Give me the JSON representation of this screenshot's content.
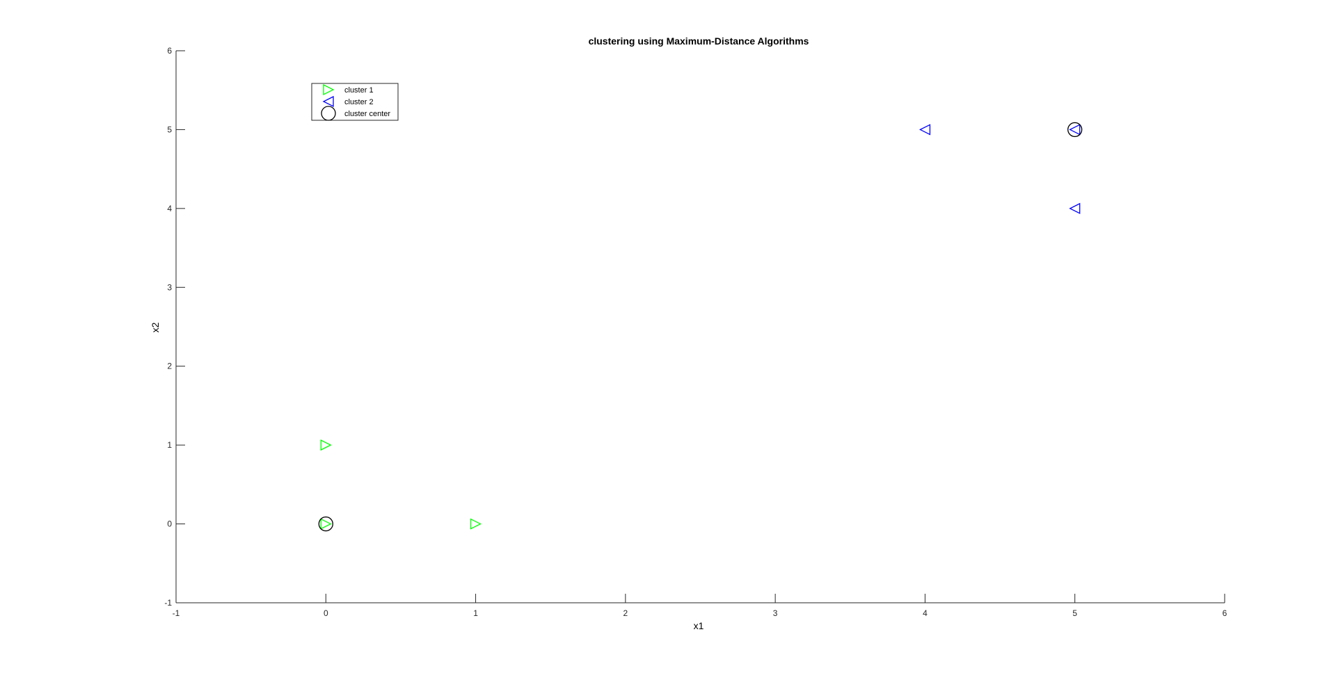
{
  "chart_data": {
    "type": "scatter",
    "title": "clustering using Maximum-Distance Algorithms",
    "xlabel": "x1",
    "ylabel": "x2",
    "xlim": [
      -1,
      6
    ],
    "ylim": [
      -1,
      6
    ],
    "xticks": [
      -1,
      0,
      1,
      2,
      3,
      4,
      5,
      6
    ],
    "yticks": [
      -1,
      0,
      1,
      2,
      3,
      4,
      5,
      6
    ],
    "grid": false,
    "legend_position": "top-left",
    "series": [
      {
        "name": "cluster 1",
        "marker": "triangle-right",
        "color": "#00ff00",
        "points": [
          [
            0,
            0
          ],
          [
            0,
            1
          ],
          [
            1,
            0
          ]
        ]
      },
      {
        "name": "cluster 2",
        "marker": "triangle-left",
        "color": "#0000ff",
        "points": [
          [
            4,
            5
          ],
          [
            5,
            5
          ],
          [
            5,
            4
          ]
        ]
      },
      {
        "name": "cluster center",
        "marker": "circle",
        "color": "#000000",
        "points": [
          [
            0,
            0
          ],
          [
            5,
            5
          ]
        ]
      }
    ]
  }
}
